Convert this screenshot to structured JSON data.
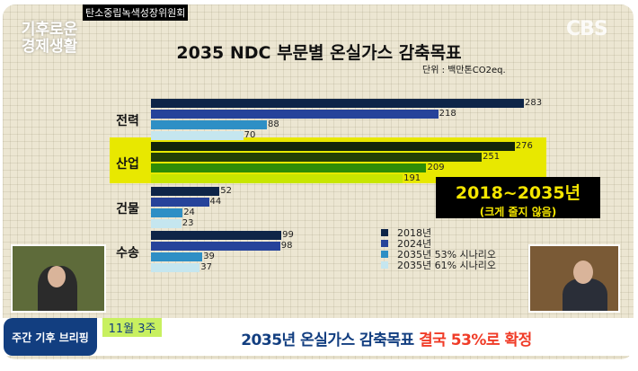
{
  "source_label": "탄소중립녹색성장위원회",
  "show_logo": "기후로운 경제생활",
  "broadcaster": "CBS",
  "chart_data": {
    "type": "bar",
    "orientation": "horizontal",
    "title": "2035 NDC 부문별 온실가스 감축목표",
    "unit": "단위 : 백만톤CO2eq.",
    "categories": [
      "전력",
      "산업",
      "건물",
      "수송"
    ],
    "series": [
      {
        "name": "2018년",
        "values": [
          283,
          276,
          52,
          99
        ]
      },
      {
        "name": "2024년",
        "values": [
          218,
          251,
          44,
          98
        ]
      },
      {
        "name": "2035년 53% 시나리오",
        "values": [
          88,
          209,
          24,
          39
        ]
      },
      {
        "name": "2035년 61% 시나리오",
        "values": [
          70,
          191,
          23,
          37
        ]
      }
    ],
    "colors": [
      "#0e2548",
      "#26439a",
      "#2e8fc5",
      "#c5e6ef"
    ],
    "highlight_category": "산업",
    "highlight_colors": [
      "#13260a",
      "#233f06",
      "#2e8c06",
      "#c8e600"
    ],
    "highlight_background": "#e8e800",
    "xlim": [
      0,
      300
    ],
    "legend_position": "bottom-right",
    "grid": false
  },
  "callout": {
    "main": "2018~2035년",
    "sub": "(크게 줄지 않음)"
  },
  "lower_third": {
    "program_badge": "주간 기후 브리핑",
    "week_label": "11월 3주",
    "headline_main": "2035년 온실가스 감축목표 ",
    "headline_emphasis": "결국 53%로 확정"
  }
}
